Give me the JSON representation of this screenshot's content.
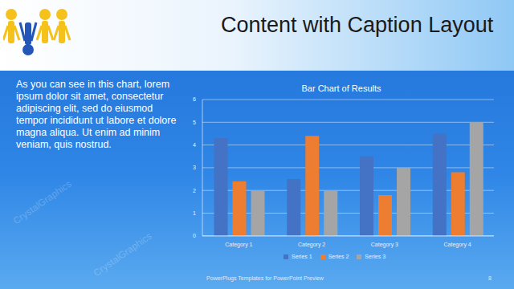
{
  "slide": {
    "title": "Content with Caption Layout",
    "caption": "As you can see in this chart, lorem ipsum dolor sit amet, consectetur adipiscing elit, sed do eiusmod tempor incididunt ut labore et dolore magna aliqua. Ut enim ad minim veniam, quis nostrud.",
    "footer": "PowerPlugs Templates for PowerPoint Preview",
    "page": 8,
    "watermark": "CrystalGraphics"
  },
  "chart_data": {
    "type": "bar",
    "title": "Bar Chart of Results",
    "categories": [
      "Category 1",
      "Category 2",
      "Category 3",
      "Category 4"
    ],
    "series": [
      {
        "name": "Series 1",
        "color": "#4472c4",
        "values": [
          4.3,
          2.5,
          3.5,
          4.5
        ]
      },
      {
        "name": "Series 2",
        "color": "#ed7d31",
        "values": [
          2.4,
          4.4,
          1.8,
          2.8
        ]
      },
      {
        "name": "Series 3",
        "color": "#a5a5a5",
        "values": [
          2,
          2,
          3,
          5
        ]
      }
    ],
    "ylim": [
      0,
      6
    ],
    "yticks": [
      0,
      1,
      2,
      3,
      4,
      5,
      6
    ],
    "grid": true,
    "legend": "bottom"
  }
}
